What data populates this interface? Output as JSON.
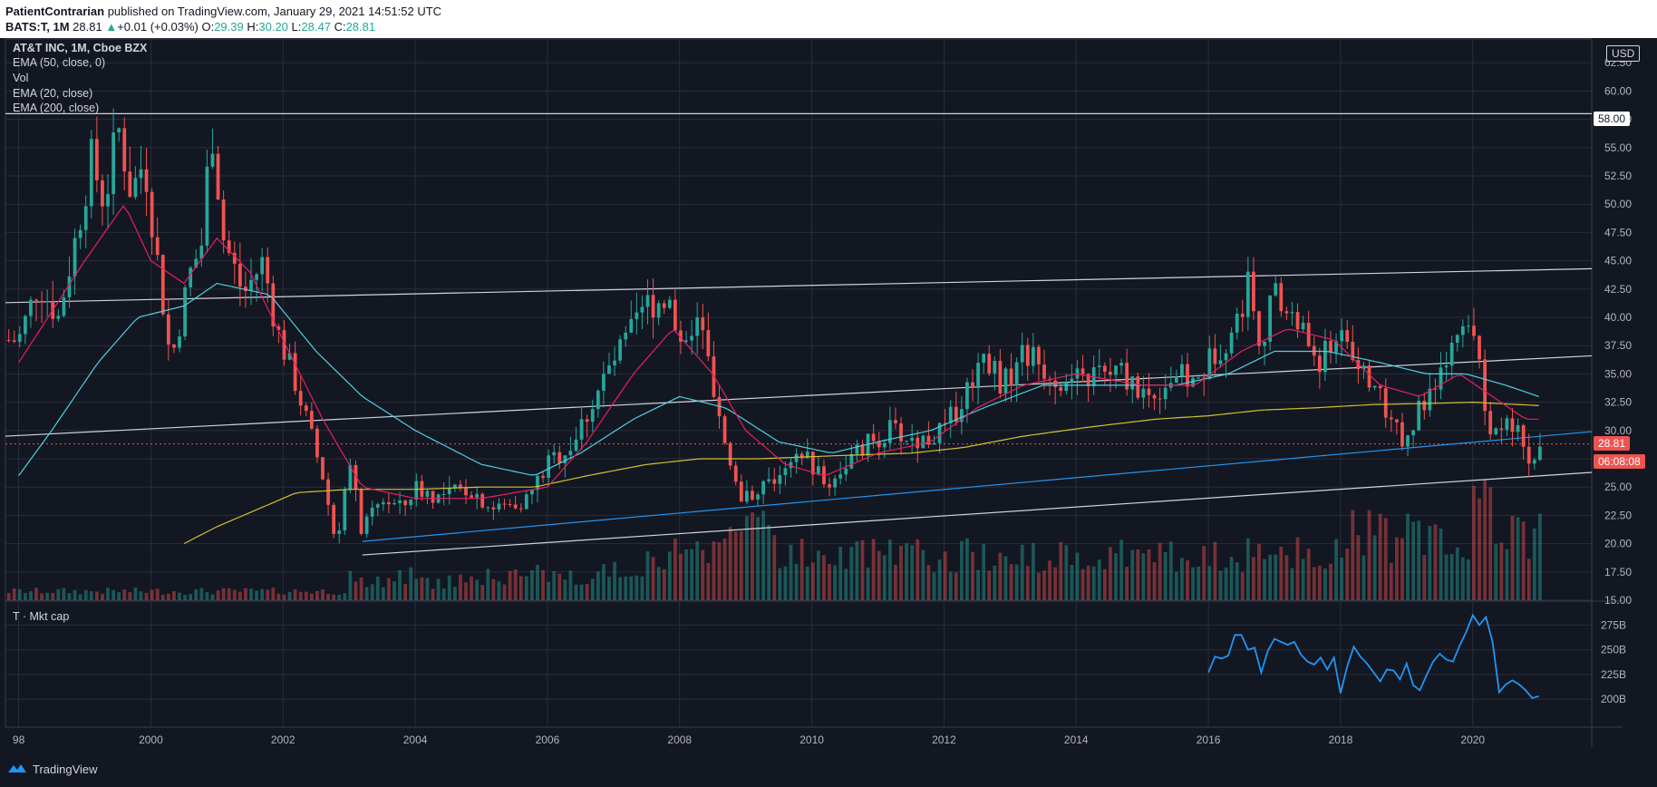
{
  "header": {
    "author": "PatientContrarian",
    "published": "published on TradingView.com, January 29, 2021 14:51:52 UTC",
    "symbol_line": "BATS:T, 1M",
    "last": "28.81",
    "change": "+0.01 (+0.03%)",
    "open_label": "O:",
    "open": "29.39",
    "high_label": "H:",
    "high": "30.20",
    "low_label": "L:",
    "low": "28.47",
    "close_label": "C:",
    "close": "28.81"
  },
  "legend": {
    "title": "AT&T INC, 1M, Cboe BZX",
    "items": [
      "EMA (50, close, 0)",
      "Vol",
      "EMA (20, close)",
      "EMA (200, close)"
    ]
  },
  "currency": "USD",
  "price_tags": {
    "level": "58.00",
    "last": "28.81",
    "countdown": "06:08:08"
  },
  "subpane": {
    "title": "T · Mkt cap"
  },
  "footer": {
    "brand": "TradingView"
  },
  "colors": {
    "background": "#131722",
    "grid": "#2a2e39",
    "up": "#26a69a",
    "down": "#ef5350",
    "ema20": "#e91e63",
    "ema50": "#4dd0e1",
    "ema200": "#d4c030",
    "trend_blue": "#2196f3",
    "mktcap": "#2196f3",
    "white_line": "#d1d4dc",
    "last_tag": "#ef5350"
  },
  "chart_data": [
    {
      "type": "candlestick",
      "title": "AT&T INC, 1M, Cboe BZX",
      "x_ticks": [
        "98",
        "2000",
        "2002",
        "2004",
        "2006",
        "2008",
        "2010",
        "2012",
        "2014",
        "2016",
        "2018",
        "2020"
      ],
      "y_ticks": [
        "62.50",
        "60.00",
        "57.50",
        "55.00",
        "52.50",
        "50.00",
        "47.50",
        "45.00",
        "42.50",
        "40.00",
        "37.50",
        "35.00",
        "32.50",
        "30.00",
        "27.50",
        "25.00",
        "22.50",
        "20.00",
        "17.50",
        "15.00"
      ],
      "ylim": [
        15,
        63
      ],
      "xlim": [
        1997.8,
        2021.8
      ],
      "price_anchors": [
        [
          1998.0,
          38
        ],
        [
          1998.3,
          43
        ],
        [
          1998.6,
          40
        ],
        [
          1998.9,
          48
        ],
        [
          1999.1,
          54
        ],
        [
          1999.3,
          50
        ],
        [
          1999.5,
          57
        ],
        [
          1999.7,
          51
        ],
        [
          1999.9,
          54
        ],
        [
          2000.1,
          45
        ],
        [
          2000.3,
          36
        ],
        [
          2000.6,
          44
        ],
        [
          2000.8,
          47
        ],
        [
          2000.9,
          58
        ],
        [
          2001.1,
          47
        ],
        [
          2001.4,
          42
        ],
        [
          2001.7,
          45
        ],
        [
          2001.9,
          39
        ],
        [
          2002.2,
          34
        ],
        [
          2002.4,
          30
        ],
        [
          2002.6,
          26
        ],
        [
          2002.8,
          20
        ],
        [
          2003.0,
          27
        ],
        [
          2003.2,
          21
        ],
        [
          2003.5,
          24
        ],
        [
          2003.8,
          23
        ],
        [
          2004.0,
          25
        ],
        [
          2004.4,
          24
        ],
        [
          2004.8,
          25
        ],
        [
          2005.2,
          23
        ],
        [
          2005.7,
          24
        ],
        [
          2006.0,
          27
        ],
        [
          2006.4,
          29
        ],
        [
          2006.8,
          34
        ],
        [
          2007.2,
          38
        ],
        [
          2007.5,
          41
        ],
        [
          2007.8,
          42
        ],
        [
          2008.0,
          38
        ],
        [
          2008.3,
          40
        ],
        [
          2008.5,
          33
        ],
        [
          2008.7,
          28
        ],
        [
          2008.9,
          24
        ],
        [
          2009.2,
          25
        ],
        [
          2009.6,
          26
        ],
        [
          2009.9,
          28
        ],
        [
          2010.2,
          25
        ],
        [
          2010.5,
          27
        ],
        [
          2010.9,
          29
        ],
        [
          2011.2,
          30
        ],
        [
          2011.6,
          29
        ],
        [
          2012.0,
          30
        ],
        [
          2012.3,
          33
        ],
        [
          2012.6,
          37
        ],
        [
          2012.9,
          34
        ],
        [
          2013.2,
          37
        ],
        [
          2013.6,
          35
        ],
        [
          2013.9,
          34
        ],
        [
          2014.3,
          35
        ],
        [
          2014.7,
          35
        ],
        [
          2015.1,
          33
        ],
        [
          2015.5,
          35
        ],
        [
          2015.8,
          34
        ],
        [
          2016.1,
          37
        ],
        [
          2016.4,
          39
        ],
        [
          2016.6,
          43
        ],
        [
          2016.8,
          38
        ],
        [
          2017.0,
          42
        ],
        [
          2017.4,
          39
        ],
        [
          2017.7,
          36
        ],
        [
          2018.0,
          39
        ],
        [
          2018.3,
          36
        ],
        [
          2018.6,
          33
        ],
        [
          2018.9,
          29
        ],
        [
          2019.1,
          31
        ],
        [
          2019.4,
          33
        ],
        [
          2019.7,
          37
        ],
        [
          2019.9,
          39
        ],
        [
          2020.1,
          36
        ],
        [
          2020.2,
          30
        ],
        [
          2020.4,
          30
        ],
        [
          2020.7,
          30
        ],
        [
          2020.9,
          27
        ],
        [
          2021.0,
          28.81
        ]
      ],
      "ema20_anchors": [
        [
          1998.0,
          36
        ],
        [
          1999.0,
          45
        ],
        [
          1999.6,
          50
        ],
        [
          2000.0,
          45
        ],
        [
          2000.5,
          43
        ],
        [
          2001.0,
          47
        ],
        [
          2001.5,
          44
        ],
        [
          2002.0,
          38
        ],
        [
          2002.6,
          31
        ],
        [
          2003.2,
          25
        ],
        [
          2004.0,
          24
        ],
        [
          2005.0,
          24
        ],
        [
          2006.0,
          25
        ],
        [
          2006.6,
          29
        ],
        [
          2007.3,
          35
        ],
        [
          2007.9,
          39
        ],
        [
          2008.5,
          35
        ],
        [
          2009.0,
          30
        ],
        [
          2009.6,
          27
        ],
        [
          2010.2,
          26
        ],
        [
          2011.0,
          28
        ],
        [
          2011.8,
          29
        ],
        [
          2012.5,
          32
        ],
        [
          2013.2,
          34
        ],
        [
          2014.0,
          35
        ],
        [
          2015.0,
          34
        ],
        [
          2015.8,
          34
        ],
        [
          2016.5,
          37
        ],
        [
          2017.2,
          39
        ],
        [
          2017.9,
          38
        ],
        [
          2018.6,
          34
        ],
        [
          2019.2,
          33
        ],
        [
          2019.8,
          35
        ],
        [
          2020.3,
          33
        ],
        [
          2020.8,
          31
        ],
        [
          2021.0,
          31
        ]
      ],
      "ema50_anchors": [
        [
          1998.0,
          26
        ],
        [
          1998.5,
          30
        ],
        [
          1999.2,
          36
        ],
        [
          1999.8,
          40
        ],
        [
          2000.5,
          41
        ],
        [
          2001.0,
          43
        ],
        [
          2001.8,
          42
        ],
        [
          2002.5,
          37
        ],
        [
          2003.2,
          33
        ],
        [
          2004.0,
          30
        ],
        [
          2005.0,
          27
        ],
        [
          2005.8,
          26
        ],
        [
          2006.5,
          28
        ],
        [
          2007.3,
          31
        ],
        [
          2008.0,
          33
        ],
        [
          2008.7,
          32
        ],
        [
          2009.5,
          29
        ],
        [
          2010.3,
          28
        ],
        [
          2011.0,
          29
        ],
        [
          2011.8,
          30
        ],
        [
          2012.6,
          32
        ],
        [
          2013.5,
          34
        ],
        [
          2014.5,
          34
        ],
        [
          2015.5,
          34
        ],
        [
          2016.3,
          35
        ],
        [
          2017.0,
          37
        ],
        [
          2017.8,
          37
        ],
        [
          2018.6,
          36
        ],
        [
          2019.3,
          35
        ],
        [
          2019.9,
          35
        ],
        [
          2020.5,
          34
        ],
        [
          2021.0,
          33
        ]
      ],
      "ema200_anchors": [
        [
          2000.5,
          20
        ],
        [
          2001.0,
          21.5
        ],
        [
          2001.6,
          23
        ],
        [
          2002.2,
          24.5
        ],
        [
          2003.0,
          24.8
        ],
        [
          2004.0,
          24.8
        ],
        [
          2005.0,
          25
        ],
        [
          2005.8,
          25
        ],
        [
          2006.6,
          26
        ],
        [
          2007.5,
          27
        ],
        [
          2008.3,
          27.5
        ],
        [
          2009.2,
          27.5
        ],
        [
          2010.5,
          27.8
        ],
        [
          2011.5,
          28
        ],
        [
          2012.3,
          28.5
        ],
        [
          2013.2,
          29.5
        ],
        [
          2014.2,
          30.3
        ],
        [
          2015.2,
          31
        ],
        [
          2016.0,
          31.3
        ],
        [
          2016.8,
          31.8
        ],
        [
          2017.6,
          32
        ],
        [
          2018.5,
          32.3
        ],
        [
          2019.4,
          32.4
        ],
        [
          2020.0,
          32.5
        ],
        [
          2021.0,
          32.2
        ]
      ],
      "trendlines": [
        {
          "name": "upper-channel",
          "from": [
            1997.8,
            41.3
          ],
          "to": [
            2021.8,
            44.3
          ]
        },
        {
          "name": "mid-channel",
          "from": [
            1997.8,
            29.5
          ],
          "to": [
            2021.8,
            36.6
          ]
        },
        {
          "name": "lower-channel",
          "from": [
            2003.2,
            19
          ],
          "to": [
            2021.8,
            26.3
          ]
        },
        {
          "name": "blue-trendline",
          "from": [
            2003.2,
            20.2
          ],
          "to": [
            2021.8,
            29.9
          ]
        },
        {
          "name": "resistance-58",
          "from": [
            1997.8,
            58
          ],
          "to": [
            2021.8,
            58
          ]
        }
      ],
      "last_price": 28.81
    },
    {
      "type": "line",
      "title": "T · Mkt cap",
      "y_ticks": [
        "275B",
        "250B",
        "225B",
        "200B"
      ],
      "ylim": [
        190,
        290
      ],
      "x": [
        2016.0,
        2016.1,
        2016.2,
        2016.3,
        2016.4,
        2016.5,
        2016.6,
        2016.7,
        2016.8,
        2016.9,
        2017.0,
        2017.1,
        2017.2,
        2017.3,
        2017.4,
        2017.5,
        2017.6,
        2017.7,
        2017.8,
        2017.9,
        2018.0,
        2018.1,
        2018.2,
        2018.3,
        2018.4,
        2018.5,
        2018.6,
        2018.7,
        2018.8,
        2018.9,
        2019.0,
        2019.1,
        2019.2,
        2019.3,
        2019.4,
        2019.5,
        2019.6,
        2019.7,
        2019.8,
        2019.9,
        2020.0,
        2020.1,
        2020.2,
        2020.3,
        2020.4,
        2020.5,
        2020.6,
        2020.7,
        2020.8,
        2020.9,
        2021.0
      ],
      "values": [
        227,
        243,
        241,
        244,
        265,
        265,
        250,
        252,
        227,
        249,
        261,
        258,
        255,
        258,
        245,
        238,
        235,
        242,
        230,
        242,
        206,
        233,
        253,
        243,
        236,
        227,
        218,
        230,
        229,
        220,
        236,
        214,
        209,
        224,
        238,
        246,
        240,
        238,
        254,
        268,
        285,
        275,
        283,
        258,
        207,
        215,
        219,
        215,
        209,
        201,
        203
      ]
    }
  ]
}
